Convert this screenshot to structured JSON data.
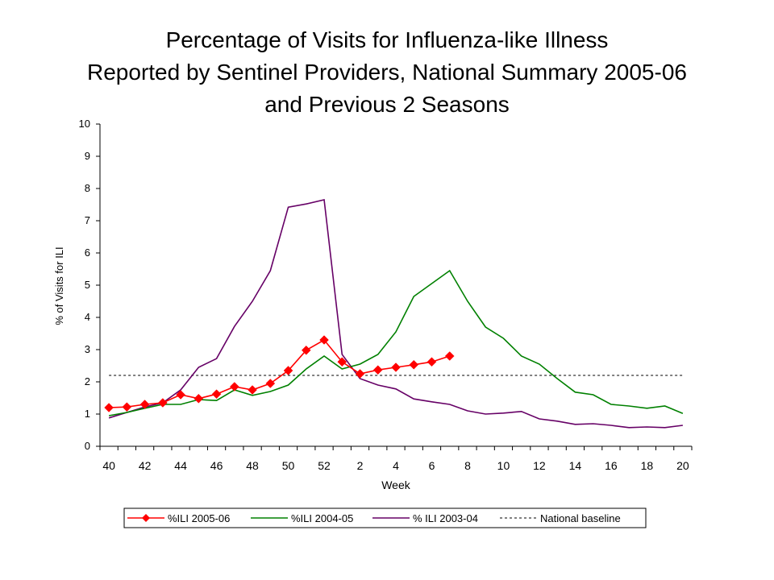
{
  "chart_data": {
    "type": "line",
    "title_lines": [
      "Percentage of Visits for Influenza-like Illness",
      "Reported by Sentinel Providers, National Summary 2005-06",
      "and Previous 2 Seasons"
    ],
    "xlabel": "Week",
    "ylabel": "% of Visits for ILI",
    "ylim": [
      0,
      10
    ],
    "yticks": [
      "0",
      "1",
      "2",
      "3",
      "4",
      "5",
      "6",
      "7",
      "8",
      "9",
      "10"
    ],
    "x": [
      "40",
      "41",
      "42",
      "43",
      "44",
      "45",
      "46",
      "47",
      "48",
      "49",
      "50",
      "51",
      "52",
      "1",
      "2",
      "3",
      "4",
      "5",
      "6",
      "7",
      "8",
      "9",
      "10",
      "11",
      "12",
      "13",
      "14",
      "15",
      "16",
      "17",
      "18",
      "19",
      "20"
    ],
    "xtick_labels": [
      "40",
      "",
      "42",
      "",
      "44",
      "",
      "46",
      "",
      "48",
      "",
      "50",
      "",
      "52",
      "",
      "2",
      "",
      "4",
      "",
      "6",
      "",
      "8",
      "",
      "10",
      "",
      "12",
      "",
      "14",
      "",
      "16",
      "",
      "18",
      "",
      "20"
    ],
    "legend_position": "bottom",
    "grid": false,
    "series": [
      {
        "name": "%ILI 2005-06",
        "color": "#ff0000",
        "marker": "diamond",
        "values": [
          1.2,
          1.22,
          1.3,
          1.35,
          1.6,
          1.48,
          1.62,
          1.85,
          1.75,
          1.95,
          2.35,
          2.98,
          3.3,
          2.62,
          2.25,
          2.37,
          2.45,
          2.53,
          2.62,
          2.8,
          null,
          null,
          null,
          null,
          null,
          null,
          null,
          null,
          null,
          null,
          null,
          null,
          null
        ]
      },
      {
        "name": "%ILI 2004-05",
        "color": "#008000",
        "marker": "none",
        "values": [
          0.95,
          1.05,
          1.18,
          1.3,
          1.3,
          1.45,
          1.42,
          1.75,
          1.58,
          1.7,
          1.9,
          2.4,
          2.8,
          2.4,
          2.55,
          2.85,
          3.55,
          4.65,
          5.05,
          5.45,
          4.5,
          3.7,
          3.35,
          2.8,
          2.55,
          2.1,
          1.68,
          1.6,
          1.3,
          1.25,
          1.18,
          1.25,
          1.02
        ]
      },
      {
        "name": "% ILI 2003-04",
        "color": "#660066",
        "marker": "none",
        "values": [
          0.88,
          1.05,
          1.22,
          1.35,
          1.75,
          2.45,
          2.72,
          3.72,
          4.5,
          5.45,
          7.42,
          7.52,
          7.65,
          2.85,
          2.1,
          1.9,
          1.78,
          1.47,
          1.38,
          1.3,
          1.1,
          1.0,
          1.03,
          1.08,
          0.85,
          0.78,
          0.68,
          0.7,
          0.65,
          0.58,
          0.6,
          0.58,
          0.65
        ]
      },
      {
        "name": "National baseline",
        "color": "#000000",
        "marker": "none",
        "dashed": true,
        "values": [
          2.2,
          2.2,
          2.2,
          2.2,
          2.2,
          2.2,
          2.2,
          2.2,
          2.2,
          2.2,
          2.2,
          2.2,
          2.2,
          2.2,
          2.2,
          2.2,
          2.2,
          2.2,
          2.2,
          2.2,
          2.2,
          2.2,
          2.2,
          2.2,
          2.2,
          2.2,
          2.2,
          2.2,
          2.2,
          2.2,
          2.2,
          2.2,
          2.2
        ]
      }
    ]
  }
}
